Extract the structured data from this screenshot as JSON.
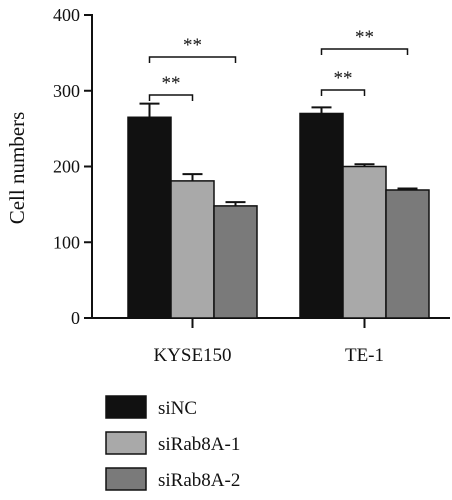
{
  "chart_data": {
    "type": "bar",
    "ylabel": "Cell numbers",
    "xlabel": "",
    "ylim": [
      0,
      400
    ],
    "yticks": [
      0,
      100,
      200,
      300,
      400
    ],
    "categories": [
      "KYSE150",
      "TE-1"
    ],
    "series": [
      {
        "name": "siNC",
        "color": "#111111",
        "values": [
          265,
          270
        ],
        "errors": [
          18,
          8
        ]
      },
      {
        "name": "siRab8A-1",
        "color": "#a9a9a9",
        "values": [
          181,
          200
        ],
        "errors": [
          9,
          3
        ]
      },
      {
        "name": "siRab8A-2",
        "color": "#7a7a7a",
        "values": [
          148,
          169
        ],
        "errors": [
          5,
          2
        ]
      }
    ],
    "significance": [
      {
        "category": 0,
        "from": 0,
        "to": 1,
        "label": "**"
      },
      {
        "category": 0,
        "from": 0,
        "to": 2,
        "label": "**"
      },
      {
        "category": 1,
        "from": 0,
        "to": 1,
        "label": "**"
      },
      {
        "category": 1,
        "from": 0,
        "to": 2,
        "label": "**"
      }
    ],
    "legend_position": "bottom-left",
    "grid": false
  }
}
